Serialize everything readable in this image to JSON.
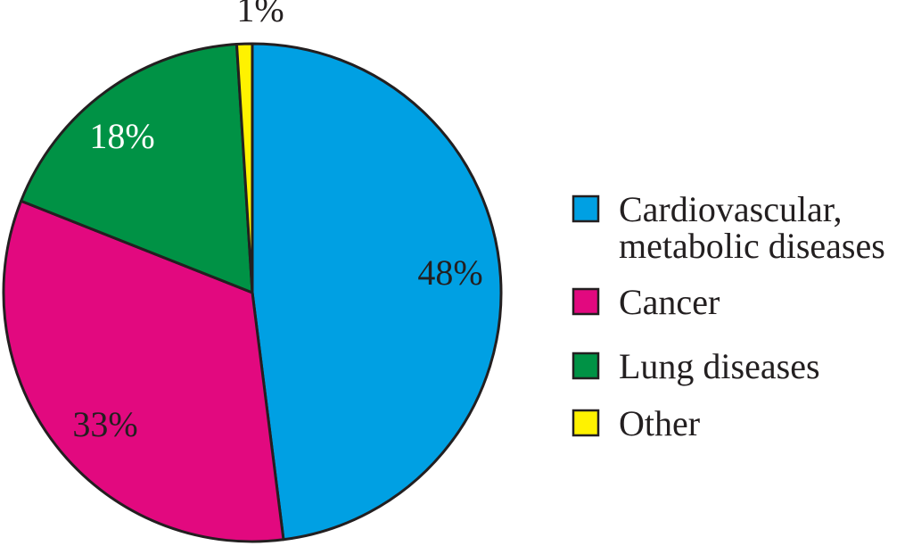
{
  "chart_data": {
    "type": "pie",
    "title": "",
    "start_angle_deg": 0,
    "direction": "clockwise",
    "legend_position": "right",
    "slices": [
      {
        "label_lines": [
          "Cardiovascular,",
          "metabolic diseases"
        ],
        "value": 48,
        "value_label": "48%",
        "color": "#00a0e3",
        "label_color": "#231f20"
      },
      {
        "label_lines": [
          "Cancer"
        ],
        "value": 33,
        "value_label": "33%",
        "color": "#e2097f",
        "label_color": "#231f20"
      },
      {
        "label_lines": [
          "Lung diseases"
        ],
        "value": 18,
        "value_label": "18%",
        "color": "#009245",
        "label_color": "#ffffff"
      },
      {
        "label_lines": [
          "Other"
        ],
        "value": 1,
        "value_label": "1%",
        "color": "#fff200",
        "label_color": "#231f20"
      }
    ]
  }
}
